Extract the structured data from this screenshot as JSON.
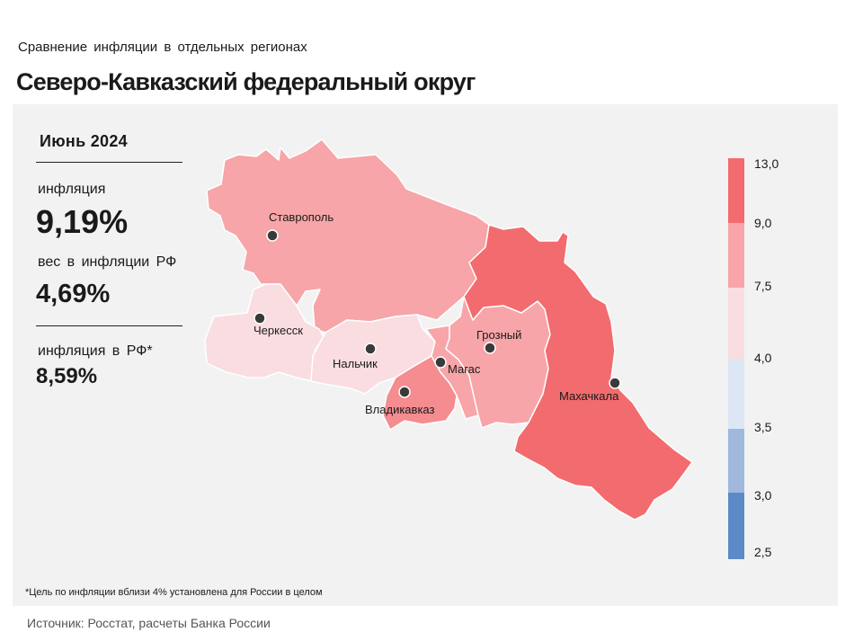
{
  "header": {
    "subtitle": "Сравнение инфляции в отдельных регионах",
    "title": "Северо-Кавказский федеральный округ"
  },
  "stats": {
    "period": "Июнь 2024",
    "inflation_label": "инфляция",
    "inflation_value": "9,19%",
    "weight_label": "вес в инфляции РФ",
    "weight_value": "4,69%",
    "rf_label": "инфляция в РФ*",
    "rf_value": "8,59%"
  },
  "map": {
    "regions": [
      {
        "name": "Ставропольский край",
        "city": "Ставрополь",
        "color": "#f7a5a8"
      },
      {
        "name": "Карачаево-Черкесия",
        "city": "Черкесск",
        "color": "#f9dde0"
      },
      {
        "name": "Кабардино-Балкария",
        "city": "Нальчик",
        "color": "#f9dde0"
      },
      {
        "name": "Северная Осетия",
        "city": "Владикавказ",
        "color": "#f48c90"
      },
      {
        "name": "Ингушетия",
        "city": "Магас",
        "color": "#f7a5a8"
      },
      {
        "name": "Чечня",
        "city": "Грозный",
        "color": "#f7a5a8"
      },
      {
        "name": "Дагестан",
        "city": "Махачкала",
        "color": "#f26b6e"
      }
    ]
  },
  "legend": {
    "labels": [
      "13,0",
      "9,0",
      "7,5",
      "4,0",
      "3,5",
      "3,0",
      "2,5"
    ],
    "colors": [
      "#f26b6e",
      "#f7a5a8",
      "#f9dde0",
      "#dde6f4",
      "#9fb8dc",
      "#5b8ac6"
    ]
  },
  "footnote": "*Цель по инфляции вблизи 4% установлена для России в целом",
  "source": "Источник: Росстат, расчеты Банка России"
}
